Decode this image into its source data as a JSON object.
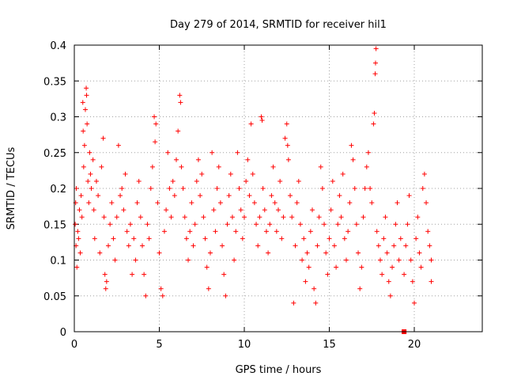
{
  "chart_data": {
    "type": "scatter",
    "title": "Day 279 of 2014, SRMTID for receiver hil1",
    "xlabel": "GPS time / hours",
    "ylabel": "SRMTID / TECUs",
    "xlim": [
      0,
      24
    ],
    "ylim": [
      0,
      0.4
    ],
    "x_ticks": [
      0,
      5,
      10,
      15,
      20
    ],
    "x_tick_labels": [
      "0",
      "5",
      "10",
      "15",
      "20"
    ],
    "y_ticks": [
      0,
      0.05,
      0.1,
      0.15,
      0.2,
      0.25,
      0.3,
      0.35,
      0.4
    ],
    "y_tick_labels": [
      "0",
      "0.05",
      "0.1",
      "0.15",
      "0.2",
      "0.25",
      "0.3",
      "0.35",
      "0.4"
    ],
    "grid": true,
    "marker": "plus",
    "color": "#ff0000",
    "series": [
      {
        "name": "SRMTID",
        "points": [
          [
            0.05,
            0.15
          ],
          [
            0.08,
            0.18
          ],
          [
            0.1,
            0.12
          ],
          [
            0.12,
            0.2
          ],
          [
            0.15,
            0.09
          ],
          [
            0.2,
            0.14
          ],
          [
            0.25,
            0.13
          ],
          [
            0.3,
            0.17
          ],
          [
            0.35,
            0.11
          ],
          [
            0.4,
            0.19
          ],
          [
            0.45,
            0.16
          ],
          [
            0.5,
            0.32
          ],
          [
            0.52,
            0.28
          ],
          [
            0.55,
            0.23
          ],
          [
            0.6,
            0.26
          ],
          [
            0.65,
            0.31
          ],
          [
            0.7,
            0.34
          ],
          [
            0.72,
            0.33
          ],
          [
            0.75,
            0.29
          ],
          [
            0.8,
            0.21
          ],
          [
            0.85,
            0.18
          ],
          [
            0.9,
            0.25
          ],
          [
            0.95,
            0.22
          ],
          [
            1.0,
            0.2
          ],
          [
            1.1,
            0.24
          ],
          [
            1.15,
            0.17
          ],
          [
            1.2,
            0.13
          ],
          [
            1.3,
            0.21
          ],
          [
            1.4,
            0.19
          ],
          [
            1.5,
            0.11
          ],
          [
            1.6,
            0.23
          ],
          [
            1.7,
            0.27
          ],
          [
            1.75,
            0.16
          ],
          [
            1.8,
            0.08
          ],
          [
            1.85,
            0.06
          ],
          [
            1.9,
            0.07
          ],
          [
            2.0,
            0.12
          ],
          [
            2.1,
            0.15
          ],
          [
            2.2,
            0.18
          ],
          [
            2.3,
            0.13
          ],
          [
            2.4,
            0.1
          ],
          [
            2.5,
            0.16
          ],
          [
            2.6,
            0.26
          ],
          [
            2.7,
            0.19
          ],
          [
            2.8,
            0.2
          ],
          [
            2.9,
            0.17
          ],
          [
            3.0,
            0.22
          ],
          [
            3.1,
            0.14
          ],
          [
            3.2,
            0.12
          ],
          [
            3.3,
            0.15
          ],
          [
            3.4,
            0.08
          ],
          [
            3.5,
            0.13
          ],
          [
            3.6,
            0.1
          ],
          [
            3.7,
            0.18
          ],
          [
            3.8,
            0.21
          ],
          [
            3.9,
            0.16
          ],
          [
            4.0,
            0.12
          ],
          [
            4.1,
            0.08
          ],
          [
            4.2,
            0.05
          ],
          [
            4.3,
            0.15
          ],
          [
            4.4,
            0.13
          ],
          [
            4.5,
            0.2
          ],
          [
            4.6,
            0.23
          ],
          [
            4.7,
            0.3
          ],
          [
            4.75,
            0.265
          ],
          [
            4.8,
            0.29
          ],
          [
            4.9,
            0.18
          ],
          [
            5.0,
            0.11
          ],
          [
            5.1,
            0.06
          ],
          [
            5.2,
            0.05
          ],
          [
            5.3,
            0.14
          ],
          [
            5.4,
            0.17
          ],
          [
            5.5,
            0.25
          ],
          [
            5.6,
            0.2
          ],
          [
            5.7,
            0.16
          ],
          [
            5.8,
            0.21
          ],
          [
            5.9,
            0.19
          ],
          [
            6.0,
            0.24
          ],
          [
            6.1,
            0.28
          ],
          [
            6.2,
            0.33
          ],
          [
            6.25,
            0.32
          ],
          [
            6.3,
            0.23
          ],
          [
            6.4,
            0.2
          ],
          [
            6.5,
            0.16
          ],
          [
            6.6,
            0.13
          ],
          [
            6.7,
            0.1
          ],
          [
            6.8,
            0.14
          ],
          [
            6.9,
            0.18
          ],
          [
            7.0,
            0.12
          ],
          [
            7.1,
            0.15
          ],
          [
            7.2,
            0.21
          ],
          [
            7.3,
            0.24
          ],
          [
            7.4,
            0.19
          ],
          [
            7.5,
            0.22
          ],
          [
            7.6,
            0.16
          ],
          [
            7.7,
            0.13
          ],
          [
            7.8,
            0.09
          ],
          [
            7.9,
            0.06
          ],
          [
            8.0,
            0.11
          ],
          [
            8.1,
            0.25
          ],
          [
            8.2,
            0.17
          ],
          [
            8.3,
            0.14
          ],
          [
            8.4,
            0.2
          ],
          [
            8.5,
            0.23
          ],
          [
            8.6,
            0.18
          ],
          [
            8.7,
            0.12
          ],
          [
            8.8,
            0.08
          ],
          [
            8.9,
            0.05
          ],
          [
            9.0,
            0.15
          ],
          [
            9.1,
            0.19
          ],
          [
            9.2,
            0.22
          ],
          [
            9.3,
            0.16
          ],
          [
            9.4,
            0.1
          ],
          [
            9.5,
            0.14
          ],
          [
            9.6,
            0.25
          ],
          [
            9.7,
            0.2
          ],
          [
            9.8,
            0.17
          ],
          [
            9.9,
            0.13
          ],
          [
            10.0,
            0.16
          ],
          [
            10.1,
            0.21
          ],
          [
            10.2,
            0.24
          ],
          [
            10.3,
            0.19
          ],
          [
            10.4,
            0.29
          ],
          [
            10.5,
            0.22
          ],
          [
            10.6,
            0.18
          ],
          [
            10.7,
            0.15
          ],
          [
            10.8,
            0.12
          ],
          [
            10.9,
            0.16
          ],
          [
            11.0,
            0.3
          ],
          [
            11.05,
            0.295
          ],
          [
            11.1,
            0.2
          ],
          [
            11.2,
            0.17
          ],
          [
            11.3,
            0.14
          ],
          [
            11.4,
            0.11
          ],
          [
            11.5,
            0.15
          ],
          [
            11.6,
            0.19
          ],
          [
            11.7,
            0.23
          ],
          [
            11.8,
            0.18
          ],
          [
            11.9,
            0.14
          ],
          [
            12.0,
            0.17
          ],
          [
            12.1,
            0.21
          ],
          [
            12.2,
            0.13
          ],
          [
            12.3,
            0.16
          ],
          [
            12.4,
            0.27
          ],
          [
            12.5,
            0.29
          ],
          [
            12.55,
            0.26
          ],
          [
            12.6,
            0.24
          ],
          [
            12.7,
            0.19
          ],
          [
            12.8,
            0.16
          ],
          [
            12.9,
            0.04
          ],
          [
            13.0,
            0.12
          ],
          [
            13.1,
            0.18
          ],
          [
            13.2,
            0.21
          ],
          [
            13.3,
            0.15
          ],
          [
            13.4,
            0.1
          ],
          [
            13.5,
            0.13
          ],
          [
            13.6,
            0.07
          ],
          [
            13.7,
            0.11
          ],
          [
            13.8,
            0.09
          ],
          [
            13.9,
            0.14
          ],
          [
            14.0,
            0.17
          ],
          [
            14.1,
            0.06
          ],
          [
            14.2,
            0.04
          ],
          [
            14.3,
            0.12
          ],
          [
            14.4,
            0.16
          ],
          [
            14.5,
            0.23
          ],
          [
            14.6,
            0.2
          ],
          [
            14.7,
            0.15
          ],
          [
            14.8,
            0.11
          ],
          [
            14.9,
            0.08
          ],
          [
            15.0,
            0.13
          ],
          [
            15.1,
            0.17
          ],
          [
            15.2,
            0.21
          ],
          [
            15.3,
            0.12
          ],
          [
            15.4,
            0.09
          ],
          [
            15.5,
            0.15
          ],
          [
            15.6,
            0.19
          ],
          [
            15.7,
            0.16
          ],
          [
            15.8,
            0.22
          ],
          [
            15.9,
            0.13
          ],
          [
            16.0,
            0.1
          ],
          [
            16.1,
            0.14
          ],
          [
            16.2,
            0.18
          ],
          [
            16.3,
            0.26
          ],
          [
            16.4,
            0.24
          ],
          [
            16.5,
            0.2
          ],
          [
            16.6,
            0.15
          ],
          [
            16.7,
            0.11
          ],
          [
            16.8,
            0.06
          ],
          [
            16.9,
            0.09
          ],
          [
            17.0,
            0.16
          ],
          [
            17.1,
            0.2
          ],
          [
            17.2,
            0.23
          ],
          [
            17.3,
            0.25
          ],
          [
            17.4,
            0.2
          ],
          [
            17.5,
            0.18
          ],
          [
            17.6,
            0.29
          ],
          [
            17.65,
            0.305
          ],
          [
            17.7,
            0.36
          ],
          [
            17.72,
            0.375
          ],
          [
            17.75,
            0.395
          ],
          [
            17.8,
            0.14
          ],
          [
            17.9,
            0.12
          ],
          [
            18.0,
            0.1
          ],
          [
            18.1,
            0.08
          ],
          [
            18.2,
            0.13
          ],
          [
            18.3,
            0.16
          ],
          [
            18.4,
            0.11
          ],
          [
            18.5,
            0.07
          ],
          [
            18.6,
            0.05
          ],
          [
            18.7,
            0.09
          ],
          [
            18.8,
            0.12
          ],
          [
            18.9,
            0.15
          ],
          [
            19.0,
            0.18
          ],
          [
            19.1,
            0.1
          ],
          [
            19.2,
            0.13
          ],
          [
            19.4,
            0.08
          ],
          [
            19.5,
            0.12
          ],
          [
            19.6,
            0.15
          ],
          [
            19.7,
            0.19
          ],
          [
            19.8,
            0.1
          ],
          [
            19.9,
            0.07
          ],
          [
            20.0,
            0.04
          ],
          [
            20.1,
            0.13
          ],
          [
            20.2,
            0.16
          ],
          [
            20.3,
            0.11
          ],
          [
            20.4,
            0.09
          ],
          [
            20.5,
            0.2
          ],
          [
            20.6,
            0.22
          ],
          [
            20.7,
            0.18
          ],
          [
            20.8,
            0.14
          ],
          [
            20.9,
            0.12
          ],
          [
            21.0,
            0.07
          ],
          [
            21.0,
            0.1
          ]
        ]
      }
    ],
    "annotations": [
      {
        "type": "marker",
        "shape": "square",
        "x": 19.4,
        "y": 0,
        "color": "#ff0000"
      }
    ]
  }
}
